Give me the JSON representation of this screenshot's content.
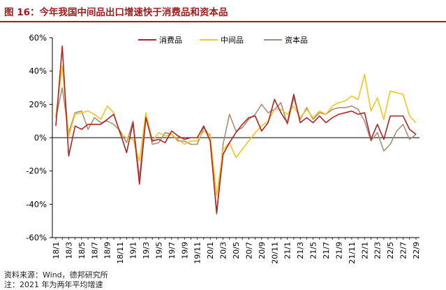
{
  "title": "图 16：今年我国中间品出口增速快于消费品和资本品",
  "source": "资料来源：Wind，德邦研究所",
  "note": "注：2021 年为两年平均增速",
  "chart_data": {
    "type": "line",
    "title": "",
    "xlabel": "",
    "ylabel": "",
    "ylim": [
      -60,
      60
    ],
    "yticks": [
      -60,
      -40,
      -20,
      0,
      20,
      40,
      60
    ],
    "ytick_labels": [
      "-60%",
      "-40%",
      "-20%",
      "0%",
      "20%",
      "40%",
      "60%"
    ],
    "legend_position": "top-right",
    "grid": false,
    "x": [
      "18/1",
      "18/2",
      "18/3",
      "18/4",
      "18/5",
      "18/6",
      "18/7",
      "18/8",
      "18/9",
      "18/10",
      "18/11",
      "18/12",
      "19/1",
      "19/2",
      "19/3",
      "19/4",
      "19/5",
      "19/6",
      "19/7",
      "19/8",
      "19/9",
      "19/10",
      "19/11",
      "19/12",
      "20/1",
      "20/2",
      "20/3",
      "20/4",
      "20/5",
      "20/6",
      "20/7",
      "20/8",
      "20/9",
      "20/10",
      "20/11",
      "20/12",
      "21/1",
      "21/2",
      "21/3",
      "21/4",
      "21/5",
      "21/6",
      "21/7",
      "21/8",
      "21/9",
      "21/10",
      "21/11",
      "21/12",
      "22/1",
      "22/2",
      "22/3",
      "22/4",
      "22/5",
      "22/6",
      "22/7",
      "22/8",
      "22/9"
    ],
    "xtick_labels": [
      "18/1",
      "18/3",
      "18/5",
      "18/7",
      "18/9",
      "18/11",
      "19/1",
      "19/3",
      "19/5",
      "19/7",
      "19/9",
      "19/11",
      "20/1",
      "20/3",
      "20/5",
      "20/7",
      "20/9",
      "20/11",
      "21/1",
      "21/3",
      "21/5",
      "21/7",
      "21/9",
      "21/11",
      "22/1",
      "22/3",
      "22/5",
      "22/7",
      "22/9"
    ],
    "series": [
      {
        "name": "消费品",
        "color": "#b22222",
        "values": [
          7,
          55,
          -11,
          7,
          5,
          8,
          8,
          8,
          11,
          14,
          3,
          -9,
          9,
          -28,
          12,
          -2,
          -1,
          -3,
          4,
          1,
          -1,
          0,
          0,
          7,
          -2,
          -45,
          -10,
          -3,
          3,
          8,
          12,
          13,
          4,
          9,
          23,
          15,
          9,
          26,
          9,
          12,
          9,
          13,
          9,
          12,
          14,
          15,
          16,
          14,
          15,
          -1,
          8,
          -1,
          13,
          13,
          13,
          5,
          2
        ]
      },
      {
        "name": "中间品",
        "color": "#f5c518",
        "values": [
          13,
          43,
          1,
          14,
          15,
          16,
          14,
          11,
          19,
          15,
          2,
          0,
          -1,
          -14,
          15,
          -2,
          3,
          1,
          2,
          -1,
          -4,
          -2,
          -2,
          4,
          2,
          -35,
          -7,
          -3,
          -12,
          -7,
          -2,
          3,
          7,
          10,
          17,
          17,
          14,
          19,
          12,
          17,
          12,
          16,
          14,
          19,
          21,
          22,
          25,
          23,
          38,
          16,
          24,
          11,
          28,
          27,
          26,
          13,
          9
        ]
      },
      {
        "name": "资本品",
        "color": "#a39077",
        "values": [
          12,
          30,
          3,
          15,
          16,
          5,
          12,
          9,
          10,
          8,
          4,
          -3,
          10,
          -24,
          14,
          -4,
          -3,
          3,
          2,
          -2,
          -2,
          -4,
          -4,
          6,
          1,
          -46,
          -4,
          14,
          4,
          6,
          11,
          14,
          20,
          15,
          17,
          21,
          8,
          24,
          11,
          18,
          11,
          15,
          14,
          17,
          18,
          18,
          19,
          17,
          10,
          -2,
          3,
          -8,
          -4,
          4,
          8,
          -1,
          2
        ]
      }
    ]
  }
}
